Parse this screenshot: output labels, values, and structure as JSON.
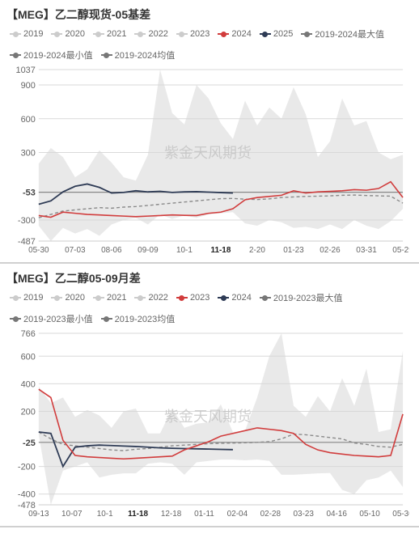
{
  "watermark": "紫金天风期货",
  "chart1": {
    "title": "【MEG】乙二醇现货-05基差",
    "type": "line",
    "background_color": "#ffffff",
    "grid_color": "#d9d9d9",
    "watermark_color": "#bdbdbd",
    "title_fontsize": 14,
    "tick_fontsize": 11,
    "ylim": [
      -487,
      1037
    ],
    "yticks": [
      -487,
      -300,
      -53,
      300,
      600,
      900,
      1037
    ],
    "ytick_highlight": -53,
    "ref_value": -53,
    "xticks": [
      "05-30",
      "07-03",
      "08-06",
      "09-09",
      "10-1",
      "11-18",
      "2-20",
      "01-23",
      "02-26",
      "03-31",
      "05-29"
    ],
    "xtick_highlight": "11-18",
    "legend": [
      {
        "label": "2019",
        "color": "#cccccc"
      },
      {
        "label": "2020",
        "color": "#cccccc"
      },
      {
        "label": "2021",
        "color": "#cccccc"
      },
      {
        "label": "2022",
        "color": "#cccccc"
      },
      {
        "label": "2023",
        "color": "#cccccc"
      },
      {
        "label": "2024",
        "color": "#d13c3c"
      },
      {
        "label": "2025",
        "color": "#2e3b55"
      },
      {
        "label": "2019-2024最大值",
        "color": "#777777"
      },
      {
        "label": "2019-2024最小值",
        "color": "#777777"
      },
      {
        "label": "2019-2024均值",
        "color": "#777777"
      }
    ],
    "range_fill_color": "#d7d7d7",
    "range_fill_opacity": 0.55,
    "series": {
      "range_max": [
        200,
        340,
        260,
        80,
        150,
        320,
        210,
        80,
        50,
        280,
        1037,
        650,
        550,
        900,
        780,
        560,
        420,
        760,
        540,
        700,
        600,
        880,
        640,
        260,
        400,
        780,
        540,
        580,
        300,
        240,
        280
      ],
      "range_min": [
        -350,
        -487,
        -370,
        -420,
        -380,
        -440,
        -340,
        -300,
        -280,
        -340,
        -250,
        -290,
        -260,
        -280,
        -250,
        -240,
        -230,
        -330,
        -350,
        -300,
        -320,
        -370,
        -360,
        -380,
        -340,
        -380,
        -300,
        -350,
        -380,
        -310,
        -200
      ],
      "mean": {
        "color": "#8a8a8a",
        "dash": "4 3",
        "width": 1.4,
        "values": [
          -280,
          -250,
          -220,
          -210,
          -200,
          -190,
          -195,
          -185,
          -180,
          -170,
          -160,
          -150,
          -140,
          -130,
          -120,
          -110,
          -108,
          -115,
          -118,
          -112,
          -100,
          -95,
          -90,
          -88,
          -85,
          -80,
          -78,
          -82,
          -85,
          -88,
          -150
        ]
      },
      "s2024": {
        "color": "#d13c3c",
        "width": 1.6,
        "values": [
          -260,
          -275,
          -230,
          -240,
          -250,
          -255,
          -260,
          -265,
          -270,
          -265,
          -260,
          -255,
          -258,
          -260,
          -240,
          -230,
          -200,
          -120,
          -100,
          -90,
          -80,
          -40,
          -60,
          -50,
          -45,
          -40,
          -30,
          -35,
          -20,
          40,
          -100
        ]
      },
      "s2025": {
        "color": "#2e3b55",
        "width": 1.8,
        "values": [
          -160,
          -130,
          -50,
          0,
          20,
          -10,
          -60,
          -55,
          -40,
          -50,
          -45,
          -55,
          -50,
          -48,
          -52,
          -56,
          -60
        ]
      }
    }
  },
  "chart2": {
    "title": "【MEG】乙二醇05-09月差",
    "type": "line",
    "background_color": "#ffffff",
    "grid_color": "#d9d9d9",
    "watermark_color": "#bdbdbd",
    "title_fontsize": 14,
    "tick_fontsize": 11,
    "ylim": [
      -478,
      766
    ],
    "yticks": [
      -478,
      -400,
      -200,
      -25,
      200,
      400,
      600,
      766
    ],
    "ytick_highlight": -25,
    "ref_value": -25,
    "xticks": [
      "09-13",
      "10-07",
      "10-1",
      "11-18",
      "12-18",
      "01-11",
      "02-04",
      "02-28",
      "03-23",
      "04-16",
      "05-10",
      "05-30"
    ],
    "xtick_highlight": "11-18",
    "legend": [
      {
        "label": "2019",
        "color": "#cccccc"
      },
      {
        "label": "2020",
        "color": "#cccccc"
      },
      {
        "label": "2021",
        "color": "#cccccc"
      },
      {
        "label": "2022",
        "color": "#cccccc"
      },
      {
        "label": "2023",
        "color": "#d13c3c"
      },
      {
        "label": "2024",
        "color": "#2e3b55"
      },
      {
        "label": "2019-2023最大值",
        "color": "#777777"
      },
      {
        "label": "2019-2023最小值",
        "color": "#777777"
      },
      {
        "label": "2019-2023均值",
        "color": "#777777"
      }
    ],
    "range_fill_color": "#d7d7d7",
    "range_fill_opacity": 0.55,
    "series": {
      "range_max": [
        380,
        260,
        300,
        160,
        210,
        170,
        80,
        200,
        220,
        40,
        40,
        220,
        80,
        110,
        120,
        250,
        50,
        60,
        300,
        600,
        766,
        240,
        160,
        310,
        200,
        440,
        240,
        510,
        50,
        70,
        640
      ],
      "range_min": [
        30,
        -478,
        -230,
        -200,
        -170,
        -280,
        -260,
        -250,
        -250,
        -180,
        -170,
        -180,
        -260,
        -170,
        -160,
        -150,
        -150,
        -155,
        -150,
        -160,
        -260,
        -260,
        -255,
        -250,
        -248,
        -370,
        -400,
        -300,
        -280,
        -230,
        -350
      ],
      "mean": {
        "color": "#8a8a8a",
        "dash": "4 3",
        "width": 1.4,
        "values": [
          50,
          0,
          -40,
          -50,
          -60,
          -70,
          -80,
          -85,
          -75,
          -70,
          -60,
          -50,
          -45,
          -40,
          -35,
          -32,
          -30,
          -28,
          -25,
          -20,
          0,
          35,
          30,
          20,
          10,
          0,
          -30,
          -40,
          -55,
          -60,
          -40
        ]
      },
      "s2023": {
        "color": "#d13c3c",
        "width": 1.6,
        "values": [
          360,
          300,
          -10,
          -120,
          -130,
          -135,
          -140,
          -145,
          -140,
          -135,
          -130,
          -125,
          -80,
          -50,
          -20,
          20,
          40,
          60,
          80,
          70,
          60,
          40,
          -40,
          -80,
          -100,
          -110,
          -120,
          -125,
          -130,
          -120,
          180
        ]
      },
      "s2024": {
        "color": "#2e3b55",
        "width": 1.8,
        "values": [
          50,
          40,
          -200,
          -60,
          -50,
          -45,
          -48,
          -52,
          -55,
          -60,
          -65,
          -68,
          -70,
          -72,
          -74,
          -76,
          -78
        ]
      }
    }
  }
}
